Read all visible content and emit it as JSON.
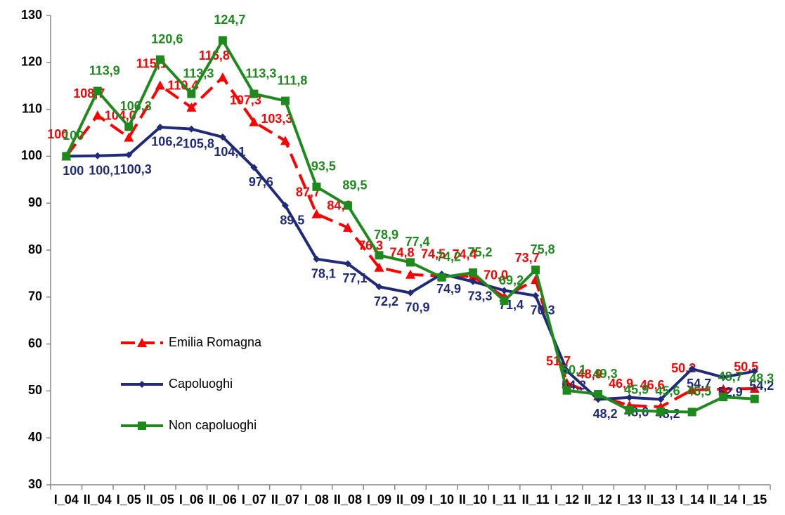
{
  "chart_data": {
    "type": "line",
    "categories": [
      "I_04",
      "II_04",
      "I_05",
      "II_05",
      "I_06",
      "II_06",
      "I_07",
      "II_07",
      "I_08",
      "II_08",
      "I_09",
      "II_09",
      "I_10",
      "II_10",
      "I_11",
      "II_11",
      "I_12",
      "II_12",
      "I_13",
      "II_13",
      "I_14",
      "II_14",
      "I_15"
    ],
    "ylim": [
      30,
      130
    ],
    "yticks": [
      30,
      40,
      50,
      60,
      70,
      80,
      90,
      100,
      110,
      120,
      130
    ],
    "legend": "left",
    "series": [
      {
        "name": "Emilia Romagna",
        "color": "#ff0000",
        "marker": "triangle",
        "dashed": true,
        "values": [
          100,
          108.7,
          104.0,
          115.1,
          110.4,
          116.8,
          107.3,
          103.3,
          87.7,
          84.8,
          76.3,
          74.8,
          74.5,
          74.4,
          70.0,
          73.7,
          51.7,
          48.9,
          46.9,
          46.6,
          50.2,
          50.4,
          50.5
        ],
        "value_labels": [
          "100",
          "108,7",
          "104,0",
          "115,1",
          "110,4",
          "116,8",
          "107,3",
          "103,3",
          "87,7",
          "84,8",
          "76,3",
          "74,8",
          "74,5",
          "74,4",
          "70,0",
          "73,7",
          "51,7",
          "48,9",
          "46,9",
          "46,6",
          "50,2",
          null,
          "50,5"
        ]
      },
      {
        "name": "Capoluoghi",
        "color": "#1f2a7a",
        "marker": "diamond",
        "dashed": false,
        "values": [
          100,
          100.1,
          100.3,
          106.2,
          105.8,
          104.1,
          97.6,
          89.5,
          78.1,
          77.1,
          72.2,
          70.9,
          74.9,
          73.3,
          71.4,
          70.3,
          54.3,
          48.2,
          48.6,
          48.2,
          54.7,
          52.9,
          54.2
        ],
        "value_labels": [
          "100",
          "100,1",
          "100,3",
          "106,2",
          "105,8",
          "104,1",
          "97,6",
          "89,5",
          "78,1",
          "77,1",
          "72,2",
          "70,9",
          "74,9",
          "73,3",
          "71,4",
          "70,3",
          "54,3",
          "48,2",
          "48,6",
          "48,2",
          "54,7",
          "52,9",
          "54,2"
        ]
      },
      {
        "name": "Non capoluoghi",
        "color": "#1e8a1e",
        "marker": "square",
        "dashed": false,
        "values": [
          100,
          113.9,
          106.3,
          120.6,
          113.3,
          124.7,
          113.3,
          111.8,
          93.5,
          89.5,
          78.9,
          77.4,
          74.2,
          75.2,
          69.2,
          75.8,
          50.1,
          49.3,
          45.9,
          45.6,
          45.5,
          48.7,
          48.3
        ],
        "value_labels": [
          "100",
          "113,9",
          "106,3",
          "120,6",
          "113,3",
          "124,7",
          "113,3",
          "111,8",
          "93,5",
          "89,5",
          "78,9",
          "77,4",
          "74,2",
          "75,2",
          "69,2",
          "75,8",
          "50,1",
          "49,3",
          "45,9",
          "45,6",
          "45,5",
          "48,7",
          "48,3"
        ]
      }
    ]
  }
}
